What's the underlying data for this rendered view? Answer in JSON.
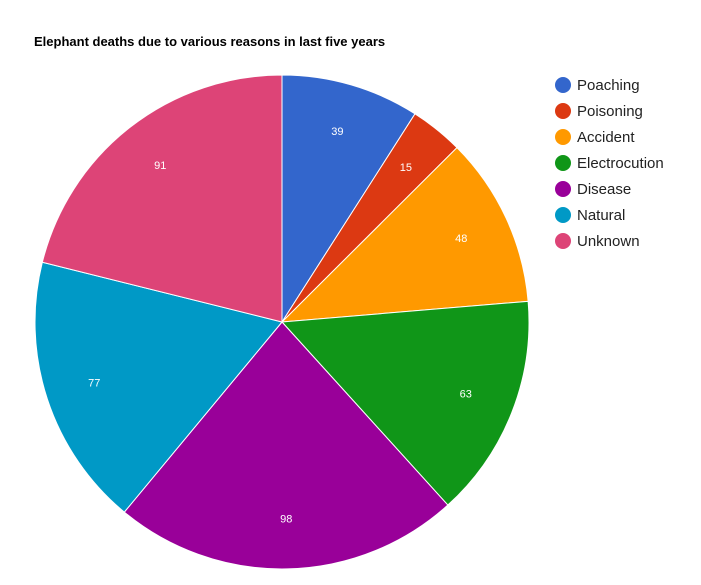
{
  "chart_data": {
    "type": "pie",
    "title": "Elephant deaths due to various reasons in last five years",
    "categories": [
      "Poaching",
      "Poisoning",
      "Accident",
      "Electrocution",
      "Disease",
      "Natural",
      "Unknown"
    ],
    "values": [
      39,
      15,
      48,
      63,
      98,
      77,
      91
    ],
    "colors": [
      "#3366cc",
      "#dc3912",
      "#ff9900",
      "#109618",
      "#990099",
      "#0099c6",
      "#dd4477"
    ],
    "legend_position": "right",
    "data_labels": true
  }
}
